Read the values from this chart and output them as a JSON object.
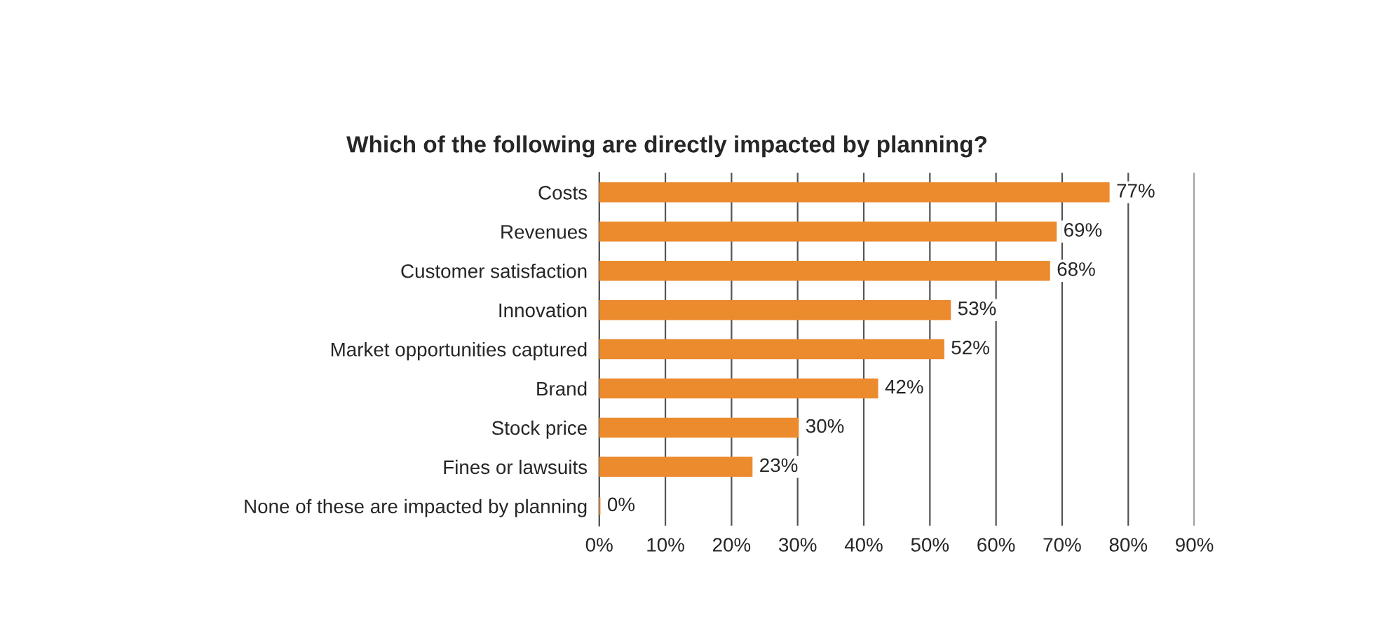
{
  "chart_data": {
    "type": "bar",
    "orientation": "horizontal",
    "title": "Which of the following are directly impacted by planning?",
    "categories": [
      "Costs",
      "Revenues",
      "Customer satisfaction",
      "Innovation",
      "Market opportunities captured",
      "Brand",
      "Stock price",
      "Fines or lawsuits",
      "None of these are impacted by planning"
    ],
    "values": [
      77,
      69,
      68,
      53,
      52,
      42,
      30,
      23,
      0
    ],
    "value_labels": [
      "77%",
      "69%",
      "68%",
      "53%",
      "52%",
      "42%",
      "30%",
      "23%",
      "0%"
    ],
    "color": "#ec8a2e",
    "xlim": [
      0,
      90
    ],
    "xticks": [
      {
        "value": 0,
        "label": "0%"
      },
      {
        "value": 10,
        "label": "10%"
      },
      {
        "value": 20,
        "label": "20%"
      },
      {
        "value": 30,
        "label": "30%"
      },
      {
        "value": 40,
        "label": "40%"
      },
      {
        "value": 50,
        "label": "50%"
      },
      {
        "value": 60,
        "label": "60%"
      },
      {
        "value": 70,
        "label": "70%"
      },
      {
        "value": 80,
        "label": "80%"
      },
      {
        "value": 90,
        "label": "90%"
      }
    ],
    "grid": "x"
  }
}
